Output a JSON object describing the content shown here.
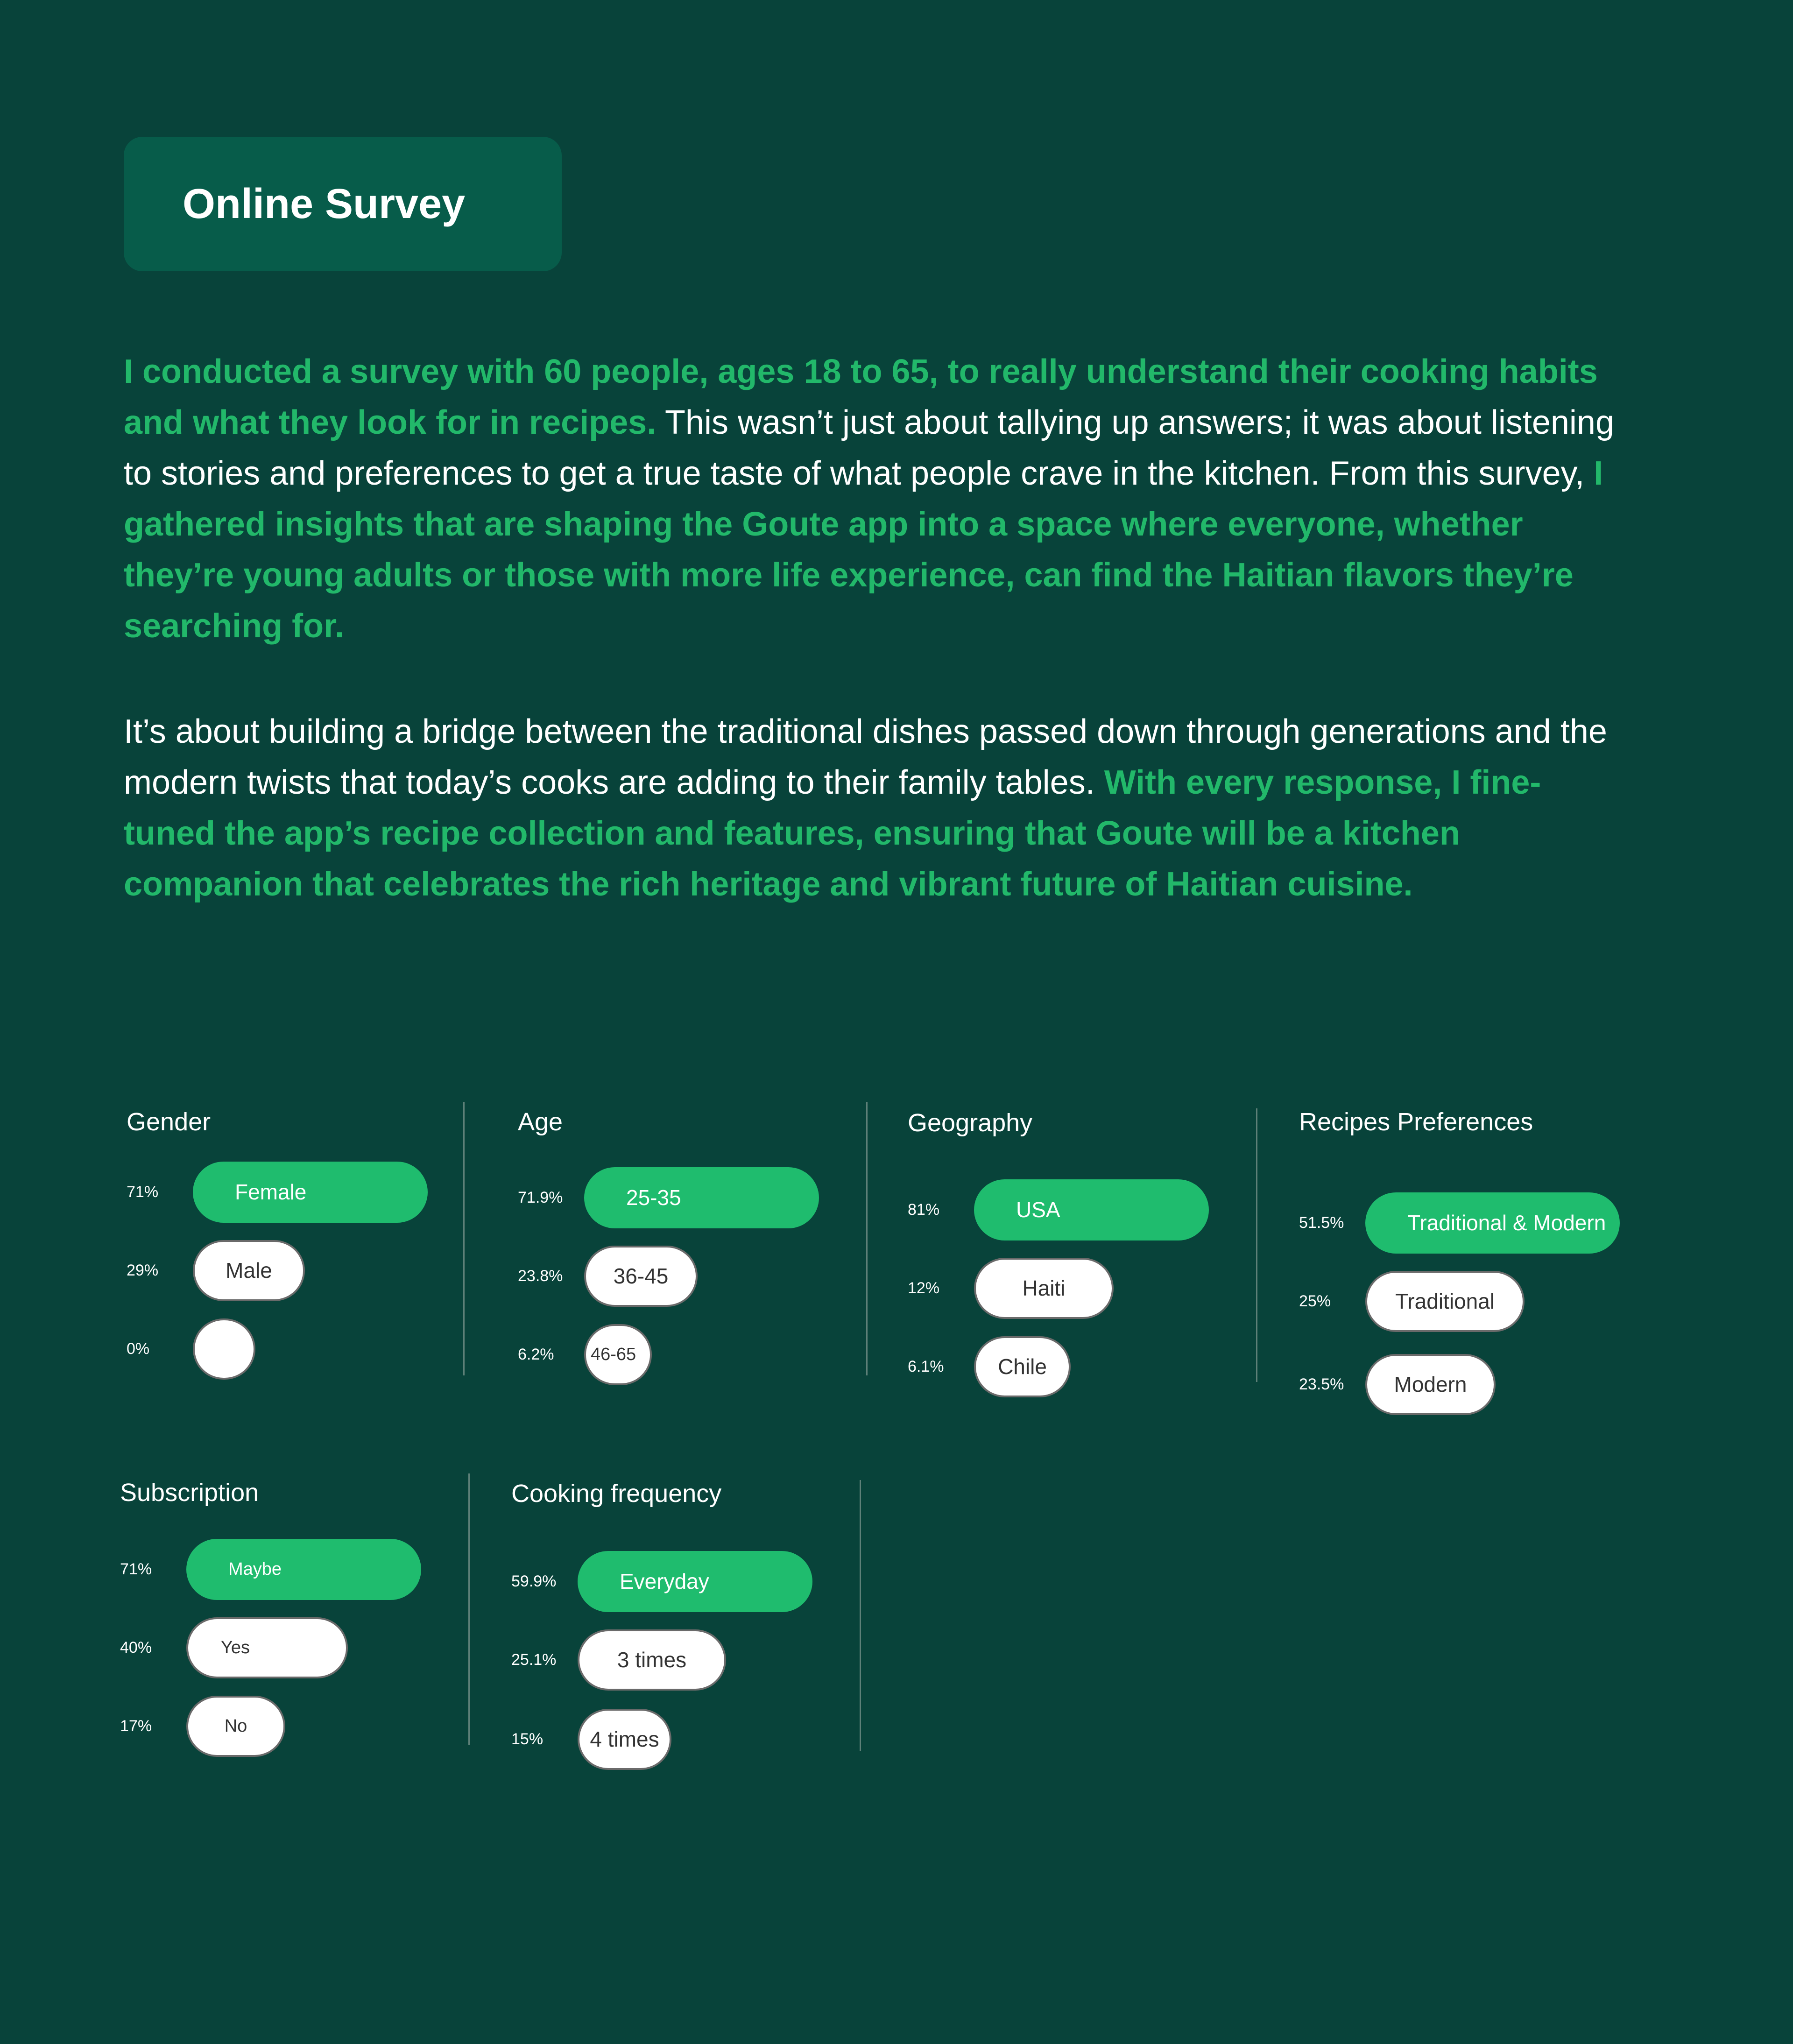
{
  "header": {
    "title": "Online Survey"
  },
  "intro": {
    "paragraphs": [
      [
        {
          "text": "I conducted a survey with 60 people, ages 18 to 65, to really understand their cooking habits and what they look for in recipes.",
          "highlight": true
        },
        {
          "text": " This wasn’t just about tallying up answers; it was about listening to stories and preferences to get a true taste of what people crave in the kitchen. From this survey, ",
          "highlight": false
        },
        {
          "text": "I gathered insights that are shaping the Goute app into a space where everyone, whether they’re young adults or those with more life experience, can find the Haitian flavors they’re searching for.",
          "highlight": true
        }
      ],
      [
        {
          "text": "It’s about building a bridge between the traditional dishes passed down through generations and the modern twists that today’s cooks are adding to their family tables. ",
          "highlight": false
        },
        {
          "text": "With every response, I fine-tuned the app’s recipe collection and features, ensuring that Goute will be a kitchen companion that celebrates the rich heritage and vibrant future of Haitian cuisine.",
          "highlight": true
        }
      ]
    ]
  },
  "colors": {
    "background": "#08433A",
    "title_box": "#075C4A",
    "accent": "#1FBC6E",
    "highlight_text": "#22B86A"
  },
  "charts": [
    {
      "title": "Gender",
      "rows": [
        {
          "percent": "71%",
          "label": "Female",
          "top": true
        },
        {
          "percent": "29%",
          "label": "Male",
          "top": false
        },
        {
          "percent": "0%",
          "label": "",
          "top": false
        }
      ]
    },
    {
      "title": "Age",
      "rows": [
        {
          "percent": "71.9%",
          "label": "25-35",
          "top": true
        },
        {
          "percent": "23.8%",
          "label": "36-45",
          "top": false
        },
        {
          "percent": "6.2%",
          "label": "46-65",
          "top": false
        }
      ]
    },
    {
      "title": "Geography",
      "rows": [
        {
          "percent": "81%",
          "label": "USA",
          "top": true
        },
        {
          "percent": "12%",
          "label": "Haiti",
          "top": false
        },
        {
          "percent": "6.1%",
          "label": "Chile",
          "top": false
        }
      ]
    },
    {
      "title": "Recipes Preferences",
      "rows": [
        {
          "percent": "51.5%",
          "label": "Traditional & Modern",
          "top": true
        },
        {
          "percent": "25%",
          "label": "Traditional",
          "top": false
        },
        {
          "percent": "23.5%",
          "label": "Modern",
          "top": false
        }
      ]
    },
    {
      "title": "Subscription",
      "rows": [
        {
          "percent": "71%",
          "label": "Maybe",
          "top": true
        },
        {
          "percent": "40%",
          "label": "Yes",
          "top": false
        },
        {
          "percent": "17%",
          "label": "No",
          "top": false
        }
      ]
    },
    {
      "title": "Cooking frequency",
      "rows": [
        {
          "percent": "59.9%",
          "label": "Everyday",
          "top": true
        },
        {
          "percent": "25.1%",
          "label": "3 times",
          "top": false
        },
        {
          "percent": "15%",
          "label": "4 times",
          "top": false
        }
      ]
    }
  ]
}
